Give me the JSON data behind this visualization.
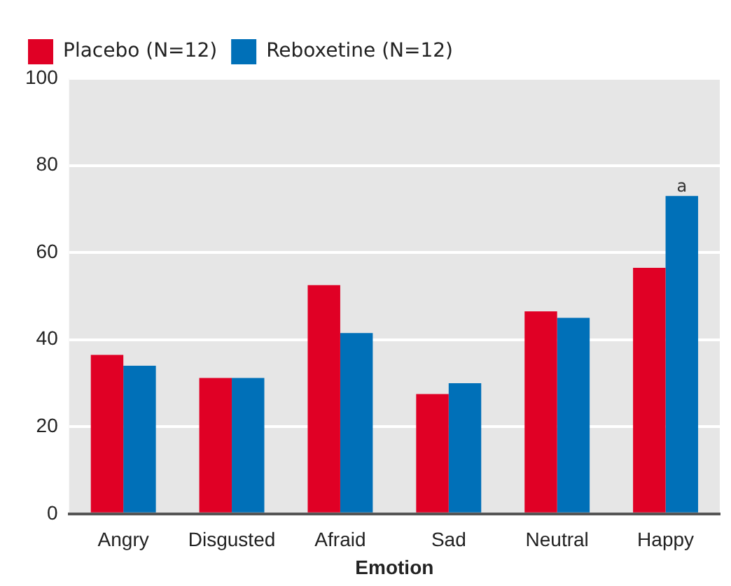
{
  "chart_data": {
    "type": "bar",
    "xlabel": "Emotion",
    "categories": [
      "Angry",
      "Disgusted",
      "Afraid",
      "Sad",
      "Neutral",
      "Happy"
    ],
    "series": [
      {
        "name": "Placebo (N=12)",
        "color": "#e00025",
        "values": [
          36.5,
          31.2,
          52.5,
          27.5,
          46.5,
          56.5
        ]
      },
      {
        "name": "Reboxetine (N=12)",
        "color": "#0070b8",
        "values": [
          34,
          31.2,
          41.5,
          30,
          45,
          73
        ]
      }
    ],
    "ylim": [
      0,
      100
    ],
    "yticks": [
      0,
      20,
      40,
      60,
      80,
      100
    ],
    "grid": "y",
    "legend": "top left",
    "annotations": [
      {
        "text": "a",
        "x": "Happy",
        "y": 73
      }
    ]
  }
}
